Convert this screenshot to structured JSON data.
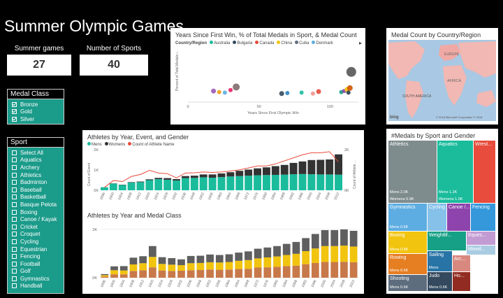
{
  "title": "Summer Olympic Games",
  "cards": [
    {
      "label": "Summer games",
      "value": "27"
    },
    {
      "label": "Number of Sports",
      "value": "40"
    }
  ],
  "medal_slicer": {
    "title": "Medal Class",
    "items": [
      {
        "label": "Bronze",
        "checked": true
      },
      {
        "label": "Gold",
        "checked": true
      },
      {
        "label": "Silver",
        "checked": true
      }
    ]
  },
  "sport_slicer": {
    "title": "Sport",
    "items": [
      {
        "label": "Select All"
      },
      {
        "label": "Aquatics"
      },
      {
        "label": "Archery"
      },
      {
        "label": "Athletics"
      },
      {
        "label": "Badminton"
      },
      {
        "label": "Baseball"
      },
      {
        "label": "Basketball"
      },
      {
        "label": "Basque Pelota"
      },
      {
        "label": "Boxing"
      },
      {
        "label": "Canoe / Kayak"
      },
      {
        "label": "Cricket"
      },
      {
        "label": "Croquet"
      },
      {
        "label": "Cycling"
      },
      {
        "label": "Equestrian"
      },
      {
        "label": "Fencing"
      },
      {
        "label": "Football"
      },
      {
        "label": "Golf"
      },
      {
        "label": "Gymnastics"
      },
      {
        "label": "Handball"
      }
    ]
  },
  "scatter": {
    "title": "Years Since First Win, % of Total Medals in Sport,  & Medal Count",
    "legend_title": "Country/Region",
    "legend": [
      {
        "name": "Australia",
        "color": "#1abc9c"
      },
      {
        "name": "Bulgaria",
        "color": "#34495e"
      },
      {
        "name": "Canada",
        "color": "#e74c3c"
      },
      {
        "name": "China",
        "color": "#f1c40f"
      },
      {
        "name": "Cuba",
        "color": "#5d6d7e"
      },
      {
        "name": "Denmark",
        "color": "#5dade2"
      }
    ],
    "ylabel": "Percent of Total Medals i...",
    "xlabel": "Years Since First Olympic Win",
    "xticks": [
      "0",
      "50",
      "100"
    ],
    "more_arrow": "▸"
  },
  "map": {
    "title": "Medal Count by Country/Region",
    "labels": {
      "europe": "EUROPE",
      "africa": "AFRICA",
      "south_america": "SOUTH\nAMERICA"
    },
    "bing": "bing",
    "copyright": "© 2018 Microsoft Corporation  © 2018"
  },
  "athletes_gender": {
    "title": "Athletes by Year, Event, and Gender",
    "legend": [
      {
        "name": "Mens",
        "color": "#1abc9c"
      },
      {
        "name": "Womens",
        "color": "#333"
      },
      {
        "name": "Count of Athlete Name",
        "color": "#e74c3c"
      }
    ],
    "ylabel_left": "Count of Event",
    "ylabel_right": "Count of Athlete ...",
    "yticks_left": [
      "2K",
      "1K",
      "0K"
    ],
    "yticks_right": [
      "2K",
      "0K"
    ]
  },
  "athletes_medal": {
    "title": "Athletes by Year and Medal Class",
    "yticks": [
      "2K",
      "0K"
    ]
  },
  "chart_data": [
    {
      "type": "scatter",
      "title": "Years Since First Win, % of Total Medals in Sport,  & Medal Count",
      "xlabel": "Years Since First Olympic Win",
      "ylabel": "Percent of Total Medals i...",
      "xlim": [
        0,
        120
      ],
      "points": [
        {
          "x": 18,
          "y": 0.22,
          "r": 3.5,
          "color": "#9b59b6"
        },
        {
          "x": 22,
          "y": 0.2,
          "r": 3,
          "color": "#f39c12"
        },
        {
          "x": 26,
          "y": 0.19,
          "r": 3,
          "color": "#5dade2"
        },
        {
          "x": 34,
          "y": 0.3,
          "r": 5,
          "color": "#7f6a6a"
        },
        {
          "x": 30,
          "y": 0.24,
          "r": 3,
          "color": "#e91e63"
        },
        {
          "x": 66,
          "y": 0.17,
          "r": 3.5,
          "color": "#34495e"
        },
        {
          "x": 70,
          "y": 0.18,
          "r": 3,
          "color": "#2e86c1"
        },
        {
          "x": 80,
          "y": 0.19,
          "r": 3,
          "color": "#1abc9c"
        },
        {
          "x": 88,
          "y": 0.17,
          "r": 3,
          "color": "#f1948a"
        },
        {
          "x": 92,
          "y": 0.21,
          "r": 3.5,
          "color": "#e74c3c"
        },
        {
          "x": 108,
          "y": 0.2,
          "r": 3,
          "color": "#16a085"
        },
        {
          "x": 110,
          "y": 0.22,
          "r": 3,
          "color": "#8e44ad"
        },
        {
          "x": 112,
          "y": 0.25,
          "r": 3.5,
          "color": "#f1c40f"
        },
        {
          "x": 114,
          "y": 0.28,
          "r": 4,
          "color": "#d35400"
        },
        {
          "x": 113,
          "y": 0.19,
          "r": 3,
          "color": "#2c3e50"
        },
        {
          "x": 115,
          "y": 0.6,
          "r": 7,
          "color": "#555"
        }
      ]
    },
    {
      "type": "bar",
      "title": "Athletes by Year, Event, and Gender",
      "categories": [
        "1896",
        "1900",
        "1904",
        "1908",
        "1912",
        "1920",
        "1924",
        "1928",
        "1932",
        "1936",
        "1948",
        "1952",
        "1956",
        "1960",
        "1964",
        "1968",
        "1972",
        "1976",
        "1980",
        "1984",
        "1988",
        "1992",
        "1996",
        "2000",
        "2004",
        "2008",
        "2012"
      ],
      "series": [
        {
          "name": "Mens",
          "values": [
            150,
            330,
            260,
            380,
            400,
            500,
            550,
            520,
            480,
            600,
            610,
            640,
            620,
            650,
            680,
            700,
            720,
            740,
            750,
            760,
            770,
            790,
            800,
            790,
            780,
            780,
            770
          ]
        },
        {
          "name": "Womens",
          "values": [
            0,
            10,
            15,
            20,
            30,
            40,
            60,
            80,
            70,
            100,
            110,
            140,
            160,
            180,
            210,
            260,
            300,
            340,
            380,
            430,
            480,
            560,
            620,
            700,
            720,
            740,
            1000
          ]
        },
        {
          "name": "Count of Athlete Name",
          "values": [
            140,
            480,
            430,
            680,
            780,
            980,
            850,
            820,
            610,
            850,
            860,
            900,
            880,
            900,
            950,
            1010,
            1100,
            1200,
            1200,
            1300,
            1450,
            1600,
            1750,
            1850,
            1850,
            1900,
            1400
          ]
        }
      ],
      "ylim": [
        0,
        2000
      ]
    },
    {
      "type": "bar",
      "stacked": true,
      "title": "Athletes by Year and Medal Class",
      "categories": [
        "1896",
        "1900",
        "1904",
        "1908",
        "1912",
        "1920",
        "1924",
        "1928",
        "1932",
        "1936",
        "1948",
        "1952",
        "1956",
        "1960",
        "1964",
        "1968",
        "1972",
        "1976",
        "1980",
        "1984",
        "1988",
        "1992",
        "1996",
        "2000",
        "2004",
        "2008",
        "2012"
      ],
      "series": [
        {
          "name": "Bronze",
          "color": "#c8794a",
          "values": [
            45,
            140,
            140,
            280,
            310,
            430,
            300,
            280,
            290,
            310,
            320,
            340,
            330,
            340,
            360,
            370,
            420,
            430,
            450,
            480,
            500,
            560,
            610,
            650,
            650,
            660,
            640
          ]
        },
        {
          "name": "Gold",
          "color": "#f1c40f",
          "values": [
            60,
            170,
            160,
            270,
            290,
            430,
            270,
            260,
            230,
            290,
            290,
            300,
            300,
            310,
            340,
            360,
            380,
            410,
            430,
            460,
            490,
            540,
            600,
            660,
            660,
            670,
            650
          ]
        },
        {
          "name": "Silver",
          "color": "#5f5f5f",
          "values": [
            45,
            160,
            180,
            280,
            290,
            450,
            280,
            270,
            240,
            300,
            300,
            320,
            310,
            320,
            340,
            360,
            400,
            410,
            430,
            460,
            490,
            540,
            600,
            660,
            660,
            670,
            650
          ]
        }
      ],
      "yticks": [
        "2K",
        "0K"
      ],
      "ylim": [
        0,
        2200
      ]
    },
    {
      "type": "treemap",
      "title": "#Medals by Sport and Gender",
      "cells": [
        {
          "name": "Athletics",
          "sub": "Mens 2.0K",
          "sub2": "Womens 0.9K",
          "color": "#7f8c8d"
        },
        {
          "name": "Aquatics",
          "sub": "Mens 1.2K",
          "sub2": "Womens 1.0K",
          "color": "#1abc9c"
        },
        {
          "name": "Wrest...",
          "sub": "",
          "sub2": "",
          "color": "#e74c3c"
        },
        {
          "name": "Gymnastics",
          "sub": "Mens 0.6K",
          "sub2": "",
          "color": "#5dade2"
        },
        {
          "name": "Cycling",
          "sub": "",
          "sub2": "",
          "color": "#85c1e9"
        },
        {
          "name": "Canoe /...",
          "sub": "",
          "sub2": "",
          "color": "#8e44ad"
        },
        {
          "name": "Fencing",
          "sub": "",
          "sub2": "",
          "color": "#3498db"
        },
        {
          "name": "Boxing",
          "sub": "Mens 0.8K",
          "sub2": "",
          "color": "#f1c40f"
        },
        {
          "name": "Weightlif...",
          "sub": "",
          "sub2": "",
          "color": "#16a085"
        },
        {
          "name": "Eques...",
          "sub": "",
          "sub2": "",
          "color": "#c39bd3"
        },
        {
          "name": "Rowing",
          "sub": "Mens 0.6K",
          "sub2": "",
          "color": "#e67e22"
        },
        {
          "name": "Sailing",
          "sub": "Mens",
          "sub2": "",
          "color": "#2874a6"
        },
        {
          "name": "Mixed...",
          "sub": "",
          "sub2": "",
          "color": "#a9cce3"
        },
        {
          "name": "Arc...",
          "sub": "",
          "sub2": "",
          "color": "#d98880"
        },
        {
          "name": "Shooting",
          "sub": "Mens 0.6K",
          "sub2": "",
          "color": "#5d6d7e"
        },
        {
          "name": "Judo",
          "sub": "Mens 0.6K",
          "sub2": "",
          "color": "#34495e"
        },
        {
          "name": "Ho...",
          "sub": "",
          "sub2": "",
          "color": "#922b21"
        }
      ]
    }
  ]
}
